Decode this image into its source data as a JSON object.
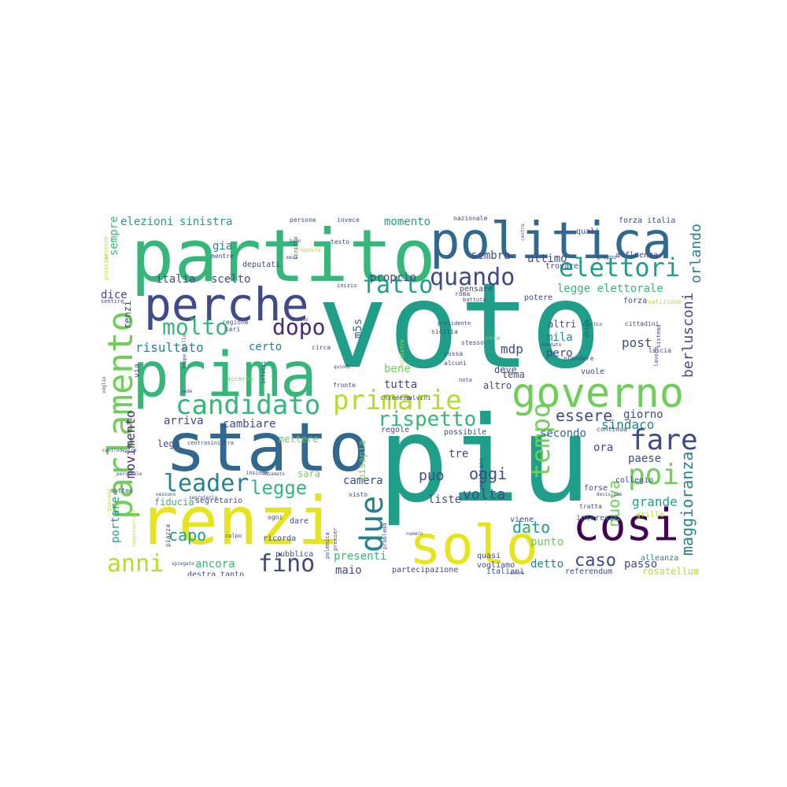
{
  "words": [
    "voto",
    "piu",
    "partito",
    "politica",
    "stato",
    "perche",
    "prima",
    "renzi",
    "governo",
    "cosi",
    "solo",
    "parlamento",
    "candidato",
    "primarie",
    "fatto",
    "quando",
    "elettori",
    "molto",
    "dopo",
    "leader",
    "fare",
    "poi",
    "anni",
    "fino",
    "due",
    "tempo",
    "legge",
    "rispetto",
    "capo",
    "essere",
    "caso",
    "dato",
    "nuova",
    "oggi",
    "maggioranza",
    "puo",
    "volta",
    "sindaco",
    "grande",
    "berlusconi",
    "orlando",
    "risultato",
    "certo",
    "mdp",
    "post",
    "mila",
    "pero",
    "movimento",
    "arriva",
    "cambiare",
    "camera",
    "liste",
    "secondo",
    "giorno",
    "paese",
    "ora",
    "tre",
    "sara",
    "tutta",
    "bene",
    "presenti",
    "punto",
    "detto",
    "passo",
    "ancora",
    "maio",
    "portare",
    "fiducia",
    "elezioni",
    "sinistra",
    "momento",
    "proprio",
    "scelto",
    "italia",
    "sembra",
    "ultimo",
    "legge elettorale",
    "dice",
    "sempre",
    "m5s",
    "gia",
    "renzi",
    "pisapia",
    "altri",
    "deve",
    "tema",
    "altro",
    "mettere",
    "lega",
    "regole",
    "possibile",
    "vuole",
    "forse",
    "collegio",
    "grillo",
    "interesse",
    "viene",
    "rosatellum",
    "referendum",
    "italiani",
    "partecipazione",
    "alleanza",
    "ricorda",
    "dare",
    "destra",
    "tanto",
    "segretario",
    "ogni",
    "visto",
    "quasi",
    "vogliamo",
    "potere",
    "forza",
    "pensare",
    "trovare",
    "quali",
    "forza italia",
    "affluenza",
    "nazionale",
    "invece",
    "persone",
    "testo",
    "deputati",
    "mentre",
    "ieri",
    "regione",
    "fronte",
    "chiedere",
    "salvini",
    "infatti",
    "accordo",
    "circa",
    "stesso",
    "possa",
    "alcuni",
    "vera",
    "sicilia",
    "ministro",
    "presidente",
    "roma",
    "unica",
    "prendere",
    "lascia",
    "lavoro",
    "coalizione",
    "sistema",
    "cittadini",
    "nota",
    "via",
    "matteo",
    "emiliano",
    "centrosinistra",
    "battuta",
    "pubblica",
    "premier",
    "polemica",
    "problema",
    "piazza",
    "colpo",
    "insieme",
    "beppe grillo",
    "segreteria",
    "voglio",
    "centrodestra",
    "giovani",
    "prossimo",
    "interno",
    "scritto",
    "proposta",
    "inizio",
    "mesi",
    "buon",
    "centro",
    "gruppo",
    "rischio",
    "oltre",
    "personale",
    "chiamato",
    "nessuno",
    "rappresentano",
    "spiegato",
    "avere",
    "continua",
    "tratta",
    "decisione",
    "numero",
    "punti",
    "mandato",
    "senato",
    "sentire",
    "vede",
    "quindi",
    "sala"
  ]
}
